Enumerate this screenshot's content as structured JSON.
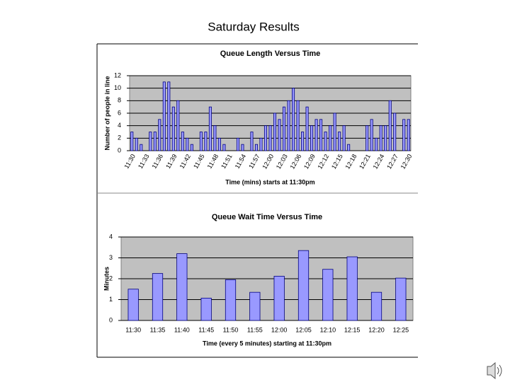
{
  "title": "Saturday Results",
  "chart_data": [
    {
      "type": "bar",
      "title": "Queue Length Versus Time",
      "x_label": "Time (mins) starts at 11:30pm",
      "y_label": "Number of people in line",
      "categories": [
        "11:30",
        null,
        null,
        "11:33",
        null,
        null,
        "11:36",
        null,
        null,
        "11:39",
        null,
        null,
        "11:42",
        null,
        null,
        "11:45",
        null,
        null,
        "11:48",
        null,
        null,
        "11:51",
        null,
        null,
        "11:54",
        null,
        null,
        "11:57",
        null,
        null,
        "12:00",
        null,
        null,
        "12:03",
        null,
        null,
        "12:06",
        null,
        null,
        "12:09",
        null,
        null,
        "12:12",
        null,
        null,
        "12:15",
        null,
        null,
        "12:18",
        null,
        null,
        "12:21",
        null,
        null,
        "12:24",
        null,
        null,
        "12:27",
        null,
        null,
        "12:30"
      ],
      "values": [
        3,
        2,
        1,
        0,
        3,
        3,
        5,
        11,
        11,
        7,
        8,
        3,
        2,
        1,
        0,
        3,
        3,
        7,
        4,
        2,
        1,
        0,
        0,
        2,
        1,
        0,
        3,
        1,
        2,
        4,
        4,
        6,
        5,
        7,
        8,
        10,
        8,
        3,
        7,
        4,
        5,
        5,
        3,
        4,
        6,
        3,
        4,
        1,
        0,
        0,
        0,
        4,
        5,
        2,
        4,
        4,
        8,
        6,
        0,
        5,
        5
      ],
      "color": "#9999ff",
      "edge_color": "#000080",
      "plot_background": "#c0c0c0",
      "ylim": [
        0,
        12
      ],
      "yticks": [
        0,
        2,
        4,
        6,
        8,
        10,
        12
      ],
      "grid": true
    },
    {
      "type": "bar",
      "title": "Queue Wait Time Versus Time",
      "x_label": "Time (every 5 minutes) starting at 11:30pm",
      "y_label": "Minutes",
      "categories": [
        "11:30",
        "11:35",
        "11:40",
        "11:45",
        "11:50",
        "11:55",
        "12:00",
        "12:05",
        "12:10",
        "12:15",
        "12:20",
        "12:25"
      ],
      "values": [
        1.5,
        2.25,
        3.2,
        1.07,
        1.95,
        1.35,
        2.12,
        3.35,
        2.45,
        3.05,
        1.35,
        2.03
      ],
      "color": "#9999ff",
      "edge_color": "#000080",
      "plot_background": "#c0c0c0",
      "ylim": [
        0,
        4
      ],
      "yticks": [
        0,
        1,
        2,
        3,
        4
      ],
      "grid": true
    }
  ]
}
